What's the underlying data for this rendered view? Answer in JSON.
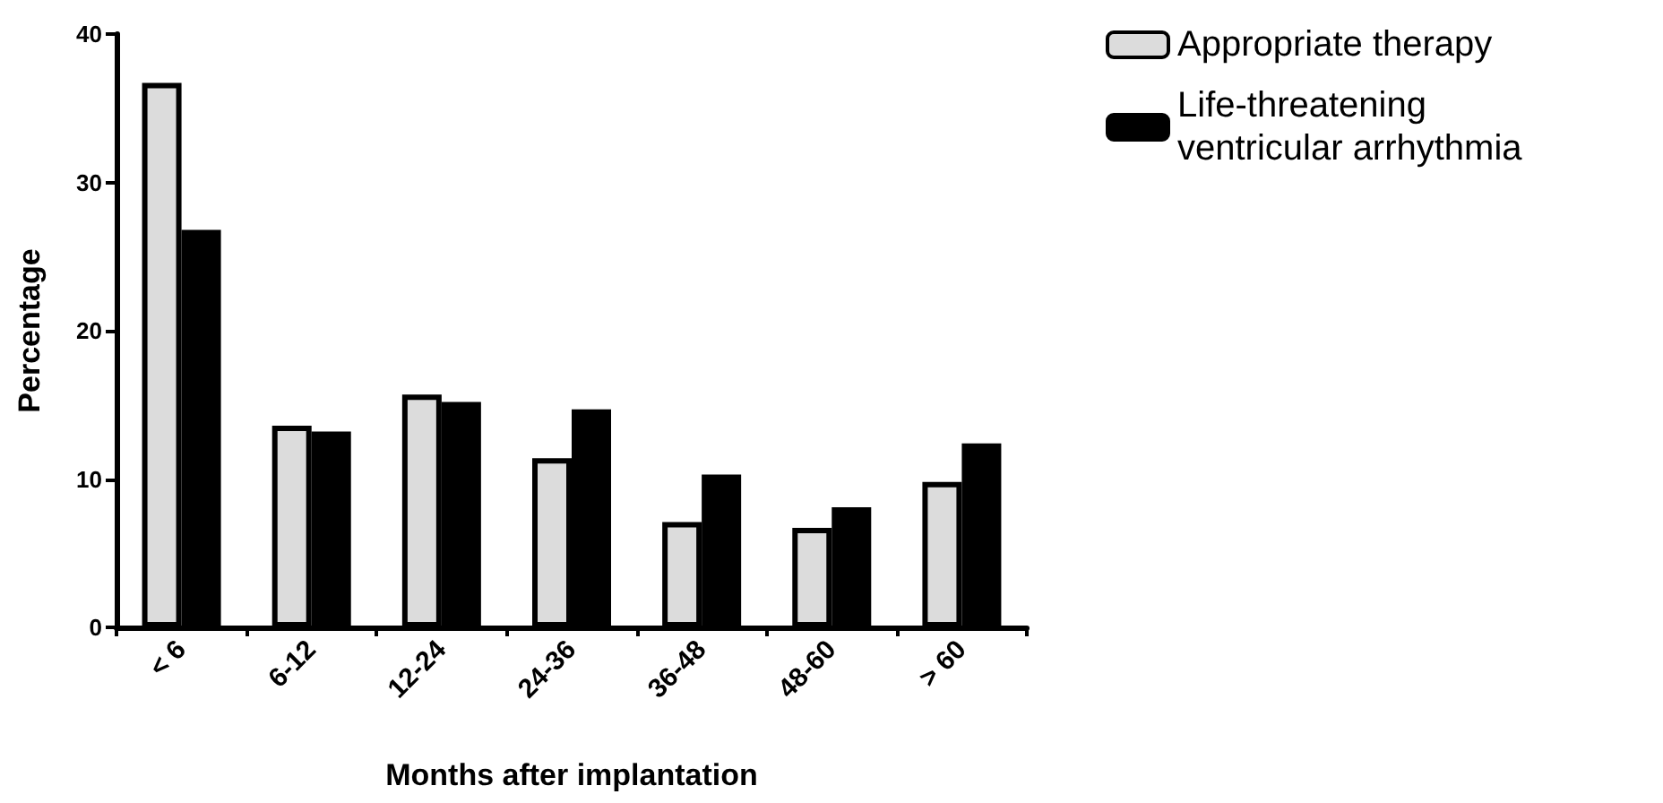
{
  "chart_data": {
    "type": "bar",
    "xlabel": "Months after implantation",
    "ylabel": "Percentage",
    "categories": [
      "< 6",
      "6-12",
      "12-24",
      "24-36",
      "36-48",
      "48-60",
      "> 60"
    ],
    "series": [
      {
        "name": "Appropriate therapy",
        "color": "#dcdcdc",
        "values": [
          36.7,
          13.6,
          15.7,
          11.4,
          7.1,
          6.7,
          9.8
        ]
      },
      {
        "name": "Life-threatening\nventricular arrhythmia",
        "color": "#000000",
        "values": [
          26.8,
          13.2,
          15.2,
          14.7,
          10.3,
          8.1,
          12.4
        ]
      }
    ],
    "ylim": [
      0,
      40
    ],
    "yticks": [
      0,
      10,
      20,
      30,
      40
    ],
    "grid": false,
    "legend": "top right"
  }
}
